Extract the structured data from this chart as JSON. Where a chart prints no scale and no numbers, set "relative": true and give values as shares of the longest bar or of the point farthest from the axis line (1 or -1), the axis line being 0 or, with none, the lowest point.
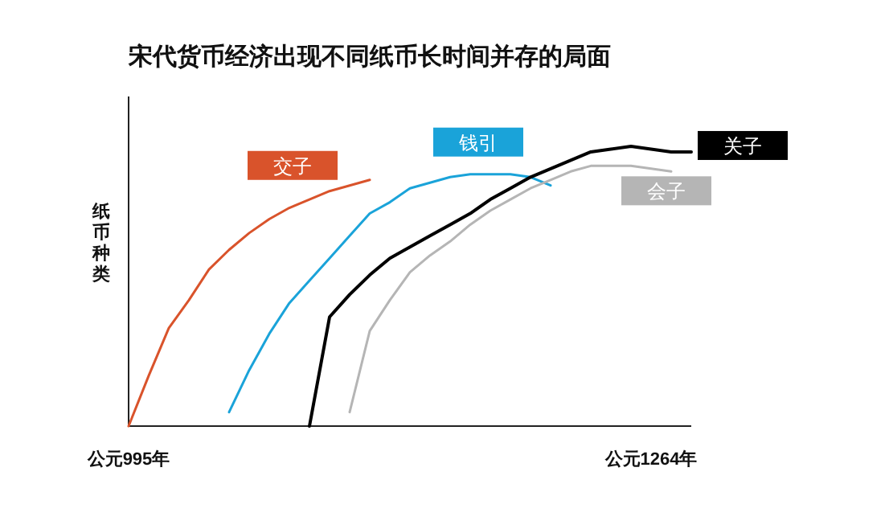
{
  "chart_data": {
    "type": "line",
    "title": "宋代货币经济出现不同纸币长时间并存的局面",
    "ylabel": "纸币种类",
    "relative": true,
    "categories": [
      "公元995年",
      null,
      null,
      null,
      null,
      null,
      null,
      null,
      null,
      null,
      null,
      null,
      null,
      null,
      null,
      null,
      null,
      null,
      null,
      null,
      null,
      null,
      null,
      null,
      null,
      null,
      "公元1264年",
      null,
      null
    ],
    "series": [
      {
        "name": "交子",
        "color": "#d9532b",
        "values": [
          0,
          0.18,
          0.35,
          0.45,
          0.56,
          0.63,
          0.69,
          0.74,
          0.78,
          0.81,
          0.84,
          0.86,
          0.88,
          null,
          null,
          null,
          null,
          null,
          null,
          null,
          null,
          null,
          null,
          null,
          null,
          null,
          null,
          null,
          null
        ]
      },
      {
        "name": "钱引",
        "color": "#1aa3d9",
        "values": [
          null,
          null,
          null,
          null,
          null,
          0.05,
          0.2,
          0.33,
          0.44,
          0.52,
          0.6,
          0.68,
          0.76,
          0.8,
          0.85,
          0.87,
          0.89,
          0.9,
          0.9,
          0.9,
          0.89,
          0.86,
          null,
          null,
          null,
          null,
          null,
          null,
          null
        ]
      },
      {
        "name": "会子",
        "color": "#b5b5b5",
        "values": [
          null,
          null,
          null,
          null,
          null,
          null,
          null,
          null,
          null,
          null,
          null,
          0.05,
          0.34,
          0.45,
          0.55,
          0.61,
          0.66,
          0.72,
          0.77,
          0.81,
          0.85,
          0.88,
          0.91,
          0.93,
          0.93,
          0.93,
          0.92,
          0.91,
          null
        ]
      },
      {
        "name": "关子",
        "color": "#000000",
        "values": [
          null,
          null,
          null,
          null,
          null,
          null,
          null,
          null,
          null,
          0,
          0.39,
          0.47,
          0.54,
          0.6,
          0.64,
          0.68,
          0.72,
          0.76,
          0.81,
          0.85,
          0.89,
          0.92,
          0.95,
          0.98,
          0.99,
          1,
          0.99,
          0.98,
          0.98
        ]
      }
    ]
  }
}
